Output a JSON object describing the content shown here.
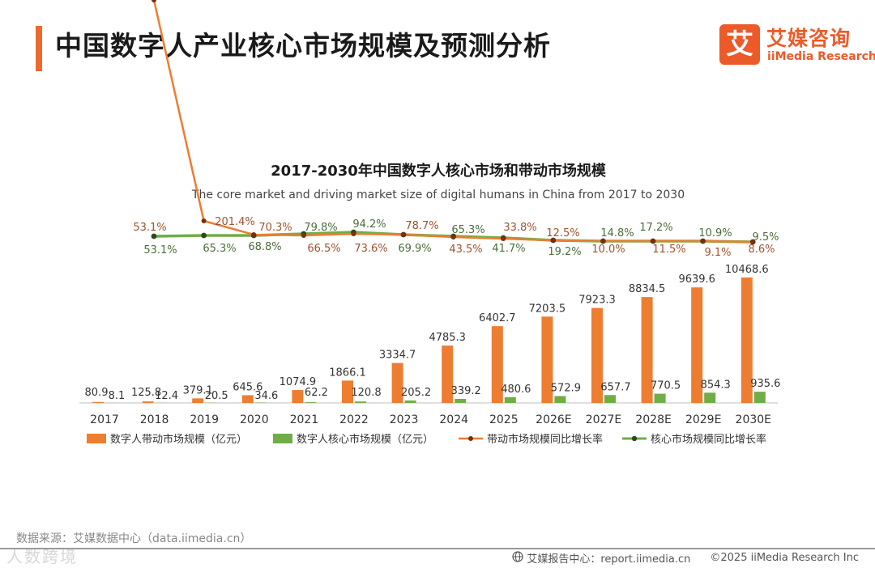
{
  "header": {
    "title": "中国数字人产业核心市场规模及预测分析",
    "logo_mark": "艾",
    "logo_cn": "艾媒咨询",
    "logo_en": "iiMedia Research"
  },
  "colors": {
    "accent": "#ec6a2c",
    "bar_driving": "#ed7d31",
    "bar_core": "#70ad47",
    "line_driving": "#ed7d31",
    "line_core": "#70ad47",
    "label_driving_rate": "#a0522d",
    "label_core_rate": "#4a6e3a"
  },
  "chart_data": {
    "type": "bar",
    "title": "2017-2030年中国数字人核心市场和带动市场规模",
    "subtitle": "The core market and driving market size of digital humans in China from 2017 to 2030",
    "categories": [
      "2017",
      "2018",
      "2019",
      "2020",
      "2021",
      "2022",
      "2023",
      "2024",
      "2025",
      "2026E",
      "2027E",
      "2028E",
      "2029E",
      "2030E"
    ],
    "series": [
      {
        "name": "数字人带动市场规模（亿元）",
        "kind": "bar",
        "values": [
          80.9,
          125.8,
          379.1,
          645.6,
          1074.9,
          1866.1,
          3334.7,
          4785.3,
          6402.7,
          7203.5,
          7923.3,
          8834.5,
          9639.6,
          10468.6
        ]
      },
      {
        "name": "数字人核心市场规模（亿元）",
        "kind": "bar",
        "values": [
          8.1,
          12.4,
          20.5,
          34.6,
          62.2,
          120.8,
          205.2,
          339.2,
          480.6,
          572.9,
          657.7,
          770.5,
          854.3,
          935.6
        ]
      }
    ],
    "rates": [
      {
        "name": "带动市场规模同比增长率",
        "kind": "line",
        "labels": [
          "53.1%",
          "",
          "201.4%",
          "70.3%",
          "66.5%",
          "73.6%",
          "78.7%",
          "43.5%",
          "33.8%",
          "12.5%",
          "10.0%",
          "11.5%",
          "9.1%",
          "8.6%"
        ]
      },
      {
        "name": "核心市场规模同比增长率",
        "kind": "line",
        "labels": [
          "53.1%",
          "65.3%",
          "68.8%",
          "79.8%",
          "94.2%",
          "69.9%",
          "65.3%",
          "41.7%",
          "19.2%",
          "14.8%",
          "17.2%",
          "10.9%",
          "9.5%"
        ]
      }
    ],
    "bar_ylim": [
      0,
      10800
    ],
    "legend": "bottom"
  },
  "footer": {
    "source": "数据来源：艾媒数据中心（data.iimedia.cn）",
    "watermark": "人数跨境",
    "report": "艾媒报告中心：report.iimedia.cn",
    "copyright": "©2025  iiMedia Research  Inc"
  }
}
